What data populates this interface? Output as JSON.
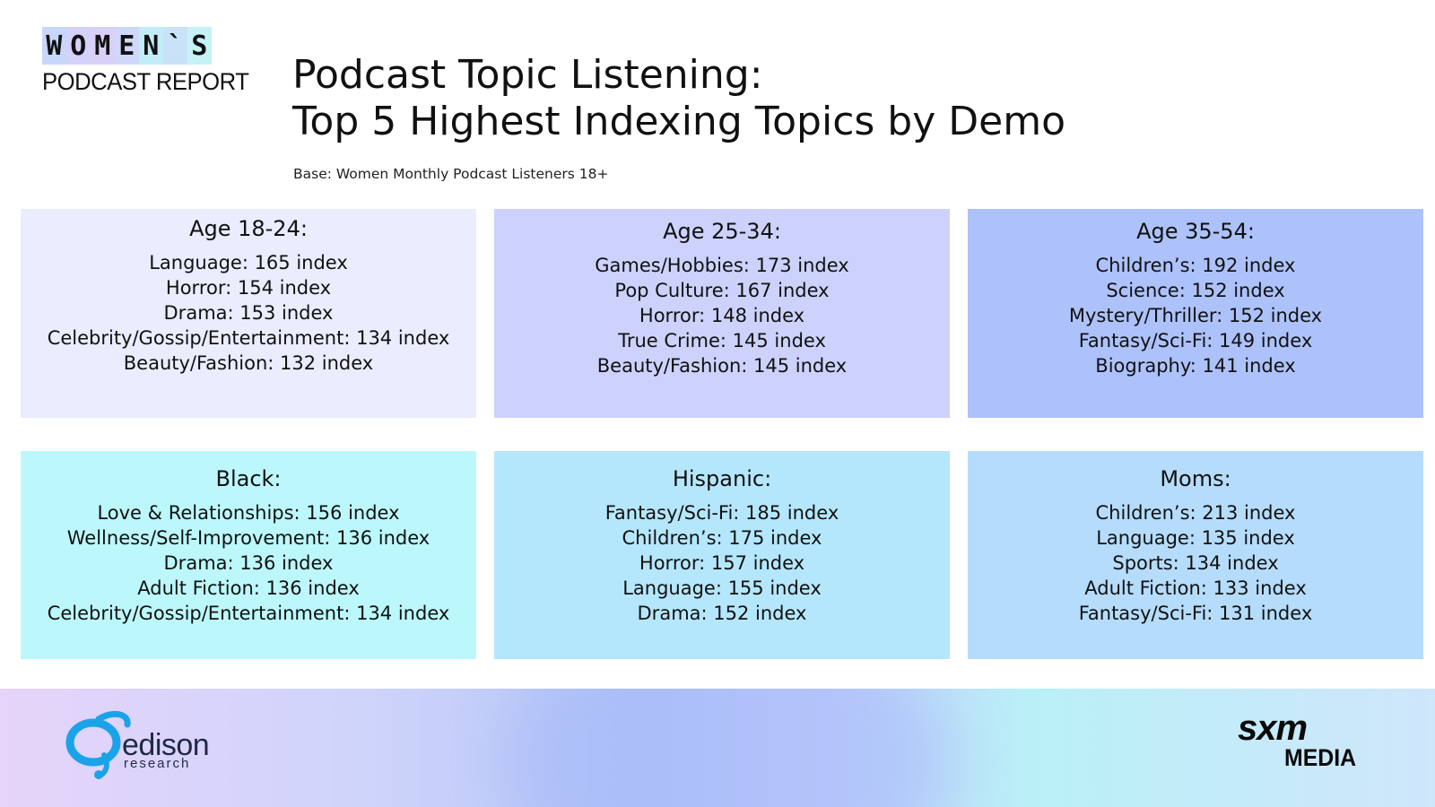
{
  "logo": {
    "letters": [
      "W",
      "O",
      "M",
      "E",
      "N",
      "`",
      "S"
    ],
    "letter_colors": [
      "#c7d6fb",
      "#d4d2fa",
      "#d9d0f8",
      "#cfd8fb",
      "#c2ecf7",
      "#c9e2f8",
      "#c6f2f6"
    ],
    "subtitle": "PODCAST REPORT"
  },
  "title": {
    "line1": "Podcast Topic Listening:",
    "line2": "Top 5 Highest Indexing Topics by Demo"
  },
  "base_note": "Base: Women Monthly Podcast Listeners 18+",
  "cards": [
    {
      "heading": "Age 18-24:",
      "color": "#e9edfd",
      "items": [
        "Language: 165 index",
        "Horror: 154 index",
        "Drama: 153 index",
        "Celebrity/Gossip/Entertainment: 134 index",
        "Beauty/Fashion: 132 index"
      ]
    },
    {
      "heading": "Age 25-34:",
      "color": "#ccd2fb",
      "items": [
        "Games/Hobbies: 173 index",
        "Pop Culture: 167 index",
        "Horror: 148 index",
        "True Crime: 145 index",
        "Beauty/Fashion: 145 index"
      ]
    },
    {
      "heading": "Age 35-54:",
      "color": "#adc2fb",
      "items": [
        "Children’s: 192 index",
        "Science: 152 index",
        "Mystery/Thriller: 152 index",
        "Fantasy/Sci-Fi: 149 index",
        "Biography: 141 index"
      ]
    },
    {
      "heading": "Black:",
      "color": "#bcf8fb",
      "items": [
        "Love & Relationships: 156 index",
        "Wellness/Self-Improvement: 136 index",
        "Drama: 136 index",
        "Adult Fiction: 136 index",
        "Celebrity/Gossip/Entertainment: 134 index"
      ]
    },
    {
      "heading": "Hispanic:",
      "color": "#b5e7fc",
      "items": [
        "Fantasy/Sci-Fi: 185 index",
        "Children’s: 175 index",
        "Horror: 157 index",
        "Language: 155 index",
        "Drama: 152 index"
      ]
    },
    {
      "heading": "Moms:",
      "color": "#b5dcfb",
      "items": [
        "Children’s: 213 index",
        "Language: 135 index",
        "Sports: 134 index",
        "Adult Fiction: 133 index",
        "Fantasy/Sci-Fi: 131 index"
      ]
    }
  ],
  "footer": {
    "edison_word": "edison",
    "edison_sub": "research",
    "sxm_top": "sxm",
    "sxm_bottom": "MEDIA"
  }
}
